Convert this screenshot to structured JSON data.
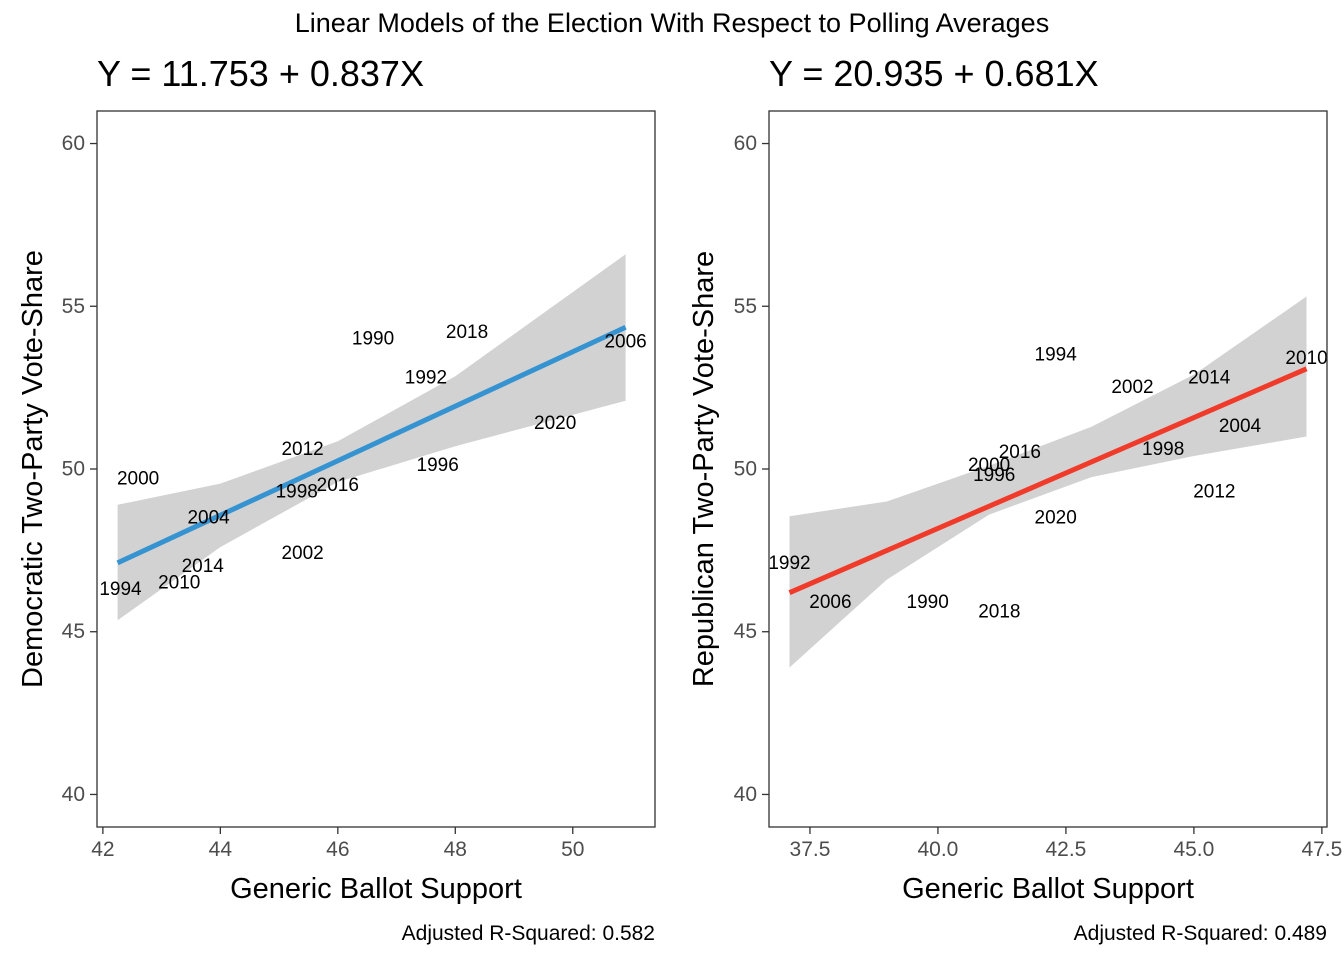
{
  "figure": {
    "title": "Linear Models of the Election With Respect to Polling Averages"
  },
  "chart_data": [
    {
      "type": "scatter",
      "title": "Y = 11.753 + 0.837X",
      "xlabel": "Generic Ballot Support",
      "ylabel": "Democratic Two-Party Vote-Share",
      "caption": "Adjusted R-Squared: 0.582",
      "xlim": [
        41.9,
        51.4
      ],
      "ylim": [
        39.0,
        61.0
      ],
      "xticks": [
        42,
        44,
        46,
        48,
        50
      ],
      "xtick_labels": [
        "42",
        "44",
        "46",
        "48",
        "50"
      ],
      "yticks": [
        40,
        45,
        50,
        55,
        60
      ],
      "ytick_labels": [
        "40",
        "45",
        "50",
        "55",
        "60"
      ],
      "grid": false,
      "points": [
        {
          "label": "1990",
          "x": 46.6,
          "y": 54.0
        },
        {
          "label": "2018",
          "x": 48.2,
          "y": 54.2
        },
        {
          "label": "2006",
          "x": 50.9,
          "y": 53.9
        },
        {
          "label": "1992",
          "x": 47.5,
          "y": 52.8
        },
        {
          "label": "2020",
          "x": 49.7,
          "y": 51.4
        },
        {
          "label": "2012",
          "x": 45.4,
          "y": 50.6
        },
        {
          "label": "1996",
          "x": 47.7,
          "y": 50.1
        },
        {
          "label": "2000",
          "x": 42.6,
          "y": 49.7
        },
        {
          "label": "1998",
          "x": 45.3,
          "y": 49.3
        },
        {
          "label": "2016",
          "x": 46.0,
          "y": 49.5
        },
        {
          "label": "2004",
          "x": 43.8,
          "y": 48.5
        },
        {
          "label": "2002",
          "x": 45.4,
          "y": 47.4
        },
        {
          "label": "2014",
          "x": 43.7,
          "y": 47.0
        },
        {
          "label": "2010",
          "x": 43.3,
          "y": 46.5
        },
        {
          "label": "1994",
          "x": 42.3,
          "y": 46.3
        }
      ],
      "fit": {
        "intercept": 11.753,
        "slope": 0.837,
        "x_range": [
          42.25,
          50.9
        ],
        "color": "#3593d1"
      },
      "confidence_band": {
        "color": "#d2d2d2",
        "lower": [
          [
            42.25,
            45.35
          ],
          [
            44.0,
            47.6
          ],
          [
            46.0,
            49.6
          ],
          [
            48.0,
            50.7
          ],
          [
            50.9,
            52.1
          ]
        ],
        "upper": [
          [
            42.25,
            48.9
          ],
          [
            44.0,
            49.55
          ],
          [
            46.0,
            50.85
          ],
          [
            48.0,
            52.85
          ],
          [
            50.9,
            56.6
          ]
        ]
      }
    },
    {
      "type": "scatter",
      "title": "Y = 20.935 + 0.681X",
      "xlabel": "Generic Ballot Support",
      "ylabel": "Republican Two-Party Vote-Share",
      "caption": "Adjusted R-Squared: 0.489",
      "xlim": [
        36.7,
        47.6
      ],
      "ylim": [
        39.0,
        61.0
      ],
      "xticks": [
        37.5,
        40.0,
        42.5,
        45.0,
        47.5
      ],
      "xtick_labels": [
        "37.5",
        "40.0",
        "42.5",
        "45.0",
        "47.5"
      ],
      "yticks": [
        40,
        45,
        50,
        55,
        60
      ],
      "ytick_labels": [
        "40",
        "45",
        "50",
        "55",
        "60"
      ],
      "grid": false,
      "points": [
        {
          "label": "1994",
          "x": 42.3,
          "y": 53.5
        },
        {
          "label": "2002",
          "x": 43.8,
          "y": 52.5
        },
        {
          "label": "2014",
          "x": 45.3,
          "y": 52.8
        },
        {
          "label": "2010",
          "x": 47.2,
          "y": 53.4
        },
        {
          "label": "2004",
          "x": 45.9,
          "y": 51.3
        },
        {
          "label": "1998",
          "x": 44.4,
          "y": 50.6
        },
        {
          "label": "2016",
          "x": 41.6,
          "y": 50.5
        },
        {
          "label": "2000",
          "x": 41.0,
          "y": 50.1
        },
        {
          "label": "1996",
          "x": 41.1,
          "y": 49.8
        },
        {
          "label": "2012",
          "x": 45.4,
          "y": 49.3
        },
        {
          "label": "2020",
          "x": 42.3,
          "y": 48.5
        },
        {
          "label": "1992",
          "x": 37.1,
          "y": 47.1
        },
        {
          "label": "2006",
          "x": 37.9,
          "y": 45.9
        },
        {
          "label": "1990",
          "x": 39.8,
          "y": 45.9
        },
        {
          "label": "2018",
          "x": 41.2,
          "y": 45.6
        }
      ],
      "fit": {
        "intercept": 20.935,
        "slope": 0.681,
        "x_range": [
          37.1,
          47.2
        ],
        "color": "#f03a2a"
      },
      "confidence_band": {
        "color": "#d2d2d2",
        "lower": [
          [
            37.1,
            43.9
          ],
          [
            39.0,
            46.6
          ],
          [
            41.0,
            48.6
          ],
          [
            43.0,
            49.75
          ],
          [
            45.0,
            50.4
          ],
          [
            47.2,
            51.0
          ]
        ],
        "upper": [
          [
            37.1,
            48.55
          ],
          [
            39.0,
            49.0
          ],
          [
            41.0,
            50.1
          ],
          [
            43.0,
            51.3
          ],
          [
            45.0,
            52.9
          ],
          [
            47.2,
            55.3
          ]
        ]
      }
    }
  ]
}
